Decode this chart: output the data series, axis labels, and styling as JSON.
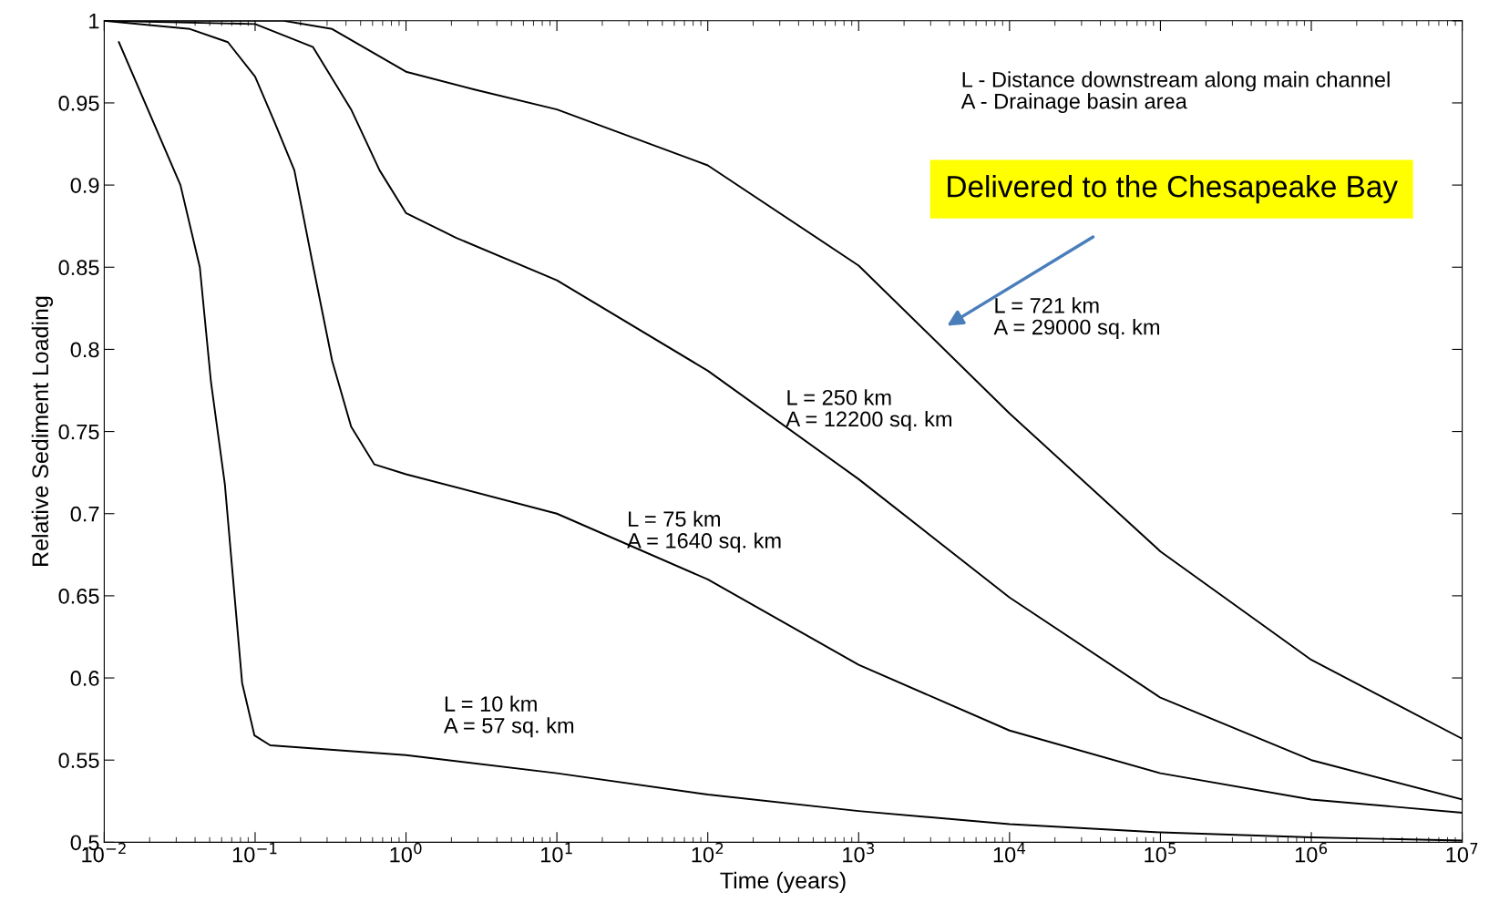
{
  "chart_data": {
    "type": "line",
    "xlabel": "Time (years)",
    "ylabel": "Relative Sediment Loading",
    "log": "x",
    "grid": false,
    "marker": "none",
    "line_style": "solid",
    "xlim": [
      0.01,
      10000000
    ],
    "ylim": [
      0.5,
      1
    ],
    "xticks": [
      {
        "value": 0.01,
        "label": "10$^{−2}$"
      },
      {
        "value": 0.1,
        "label": "10$^{−1}$"
      },
      {
        "value": 1,
        "label": "10$^{0}$"
      },
      {
        "value": 10,
        "label": "10$^{1}$"
      },
      {
        "value": 100,
        "label": "10$^{2}$"
      },
      {
        "value": 1000,
        "label": "10$^{3}$"
      },
      {
        "value": 10000,
        "label": "10$^{4}$"
      },
      {
        "value": 100000,
        "label": "10$^{5}$"
      },
      {
        "value": 1000000,
        "label": "10$^{6}$"
      },
      {
        "value": 10000000,
        "label": "10$^{7}$"
      }
    ],
    "yticks": [
      0.5,
      0.55,
      0.6,
      0.65,
      0.7,
      0.75,
      0.8,
      0.85,
      0.9,
      0.95,
      1
    ],
    "series": [
      {
        "color": "#000000",
        "x": [
          0.0125,
          0.032,
          0.043,
          0.051,
          0.063,
          0.082,
          0.099,
          0.126,
          1,
          10,
          100,
          1000,
          10000,
          100000,
          1000000,
          10000000
        ],
        "values": [
          0.987,
          0.9,
          0.85,
          0.78,
          0.718,
          0.597,
          0.565,
          0.559,
          0.553,
          0.542,
          0.529,
          0.519,
          0.511,
          0.506,
          0.503,
          0.501
        ]
      },
      {
        "color": "#000000",
        "x": [
          0.01,
          0.037,
          0.066,
          0.1,
          0.135,
          0.182,
          0.242,
          0.324,
          0.433,
          0.617,
          1,
          10,
          100,
          1000,
          10000,
          100000,
          1000000,
          10000000
        ],
        "values": [
          1.0,
          0.995,
          0.987,
          0.966,
          0.938,
          0.909,
          0.851,
          0.793,
          0.753,
          0.73,
          0.724,
          0.7,
          0.66,
          0.608,
          0.568,
          0.542,
          0.526,
          0.518
        ]
      },
      {
        "color": "#000000",
        "x": [
          0.01,
          0.1,
          0.242,
          0.433,
          0.668,
          1,
          2.14,
          10,
          100,
          1000,
          10000,
          100000,
          1000000,
          10000000
        ],
        "values": [
          1.0,
          0.998,
          0.984,
          0.946,
          0.909,
          0.883,
          0.868,
          0.842,
          0.787,
          0.721,
          0.649,
          0.588,
          0.55,
          0.526
        ]
      },
      {
        "color": "#000000",
        "x": [
          0.01,
          0.155,
          0.324,
          1,
          2.88,
          10,
          100,
          1000,
          10000,
          100000,
          1000000,
          10000000
        ],
        "values": [
          1.0,
          1.0,
          0.995,
          0.969,
          0.958,
          0.946,
          0.912,
          0.851,
          0.761,
          0.677,
          0.611,
          0.563
        ]
      }
    ],
    "annotations": [
      "L - Distance downstream along main channel\nA - Drainage basin area",
      "Delivered to the Chesapeake Bay",
      "L = 10 km\nA = 57 sq. km",
      "L = 75 km\nA = 1640 sq. km",
      "L = 250 km\nA = 12200 sq. km",
      "L = 721 km\nA = 29000 sq. km"
    ]
  }
}
